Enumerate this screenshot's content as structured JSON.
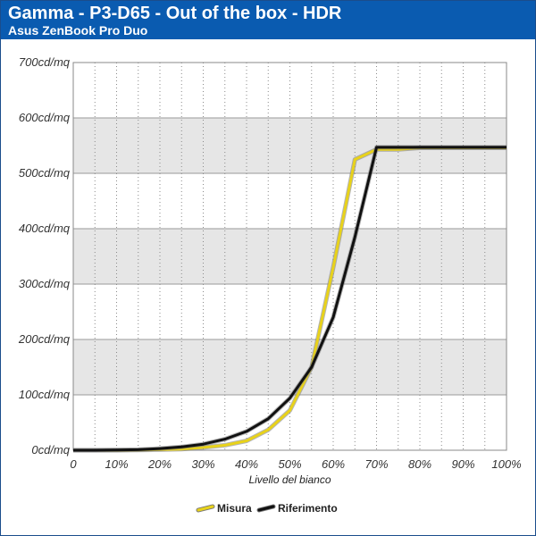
{
  "header": {
    "title": "Gamma - P3-D65 - Out of the box - HDR",
    "subtitle": "Asus ZenBook Pro Duo"
  },
  "colors": {
    "header_bg": "#0a5bb0",
    "misura": "#e8d21a",
    "riferimento": "#111111",
    "band": "#e6e6e6"
  },
  "chart_data": {
    "type": "line",
    "xlabel": "Livello del bianco",
    "ylabel": "",
    "ylim": [
      0,
      700
    ],
    "xlim": [
      0,
      100
    ],
    "x": [
      0,
      5,
      10,
      15,
      20,
      25,
      30,
      35,
      40,
      45,
      50,
      55,
      60,
      65,
      70,
      75,
      80,
      85,
      90,
      95,
      100
    ],
    "x_ticks": [
      "0",
      "10%",
      "20%",
      "30%",
      "40%",
      "50%",
      "60%",
      "70%",
      "80%",
      "90%",
      "100%"
    ],
    "y_ticks": [
      "0cd/mq",
      "100cd/mq",
      "200cd/mq",
      "300cd/mq",
      "400cd/mq",
      "500cd/mq",
      "600cd/mq",
      "700cd/mq"
    ],
    "grid": true,
    "legend_position": "bottom-center",
    "series": [
      {
        "name": "Misura",
        "color": "#e8d21a",
        "values": [
          0,
          0,
          0,
          0.5,
          1,
          2,
          5,
          9,
          17,
          37,
          72,
          150,
          330,
          525,
          543,
          543,
          546,
          546,
          546,
          546,
          546
        ]
      },
      {
        "name": "Riferimento",
        "color": "#111111",
        "values": [
          0,
          0,
          0.5,
          1,
          3,
          6,
          11,
          20,
          34,
          57,
          94,
          150,
          240,
          385,
          547,
          547,
          547,
          547,
          547,
          547,
          547
        ]
      }
    ]
  }
}
